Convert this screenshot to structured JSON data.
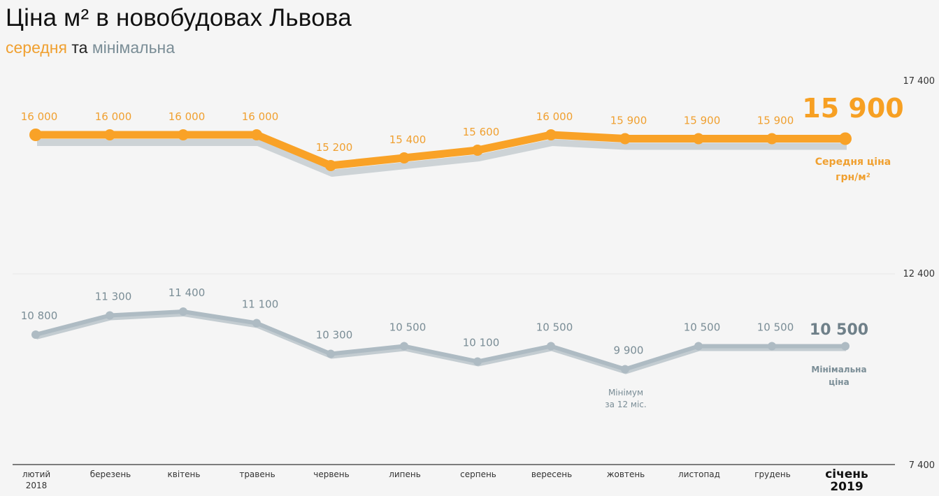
{
  "header": {
    "title": "Ціна м² в новобудовах Львова",
    "subtitle_avg": "середня",
    "subtitle_and": " та ",
    "subtitle_min": "мінімальна"
  },
  "colors": {
    "avg": "#f9a227",
    "avg_label": "#f0a030",
    "min": "#aebbc3",
    "min_label": "#7a8d96",
    "shadow": "#cdd3d6",
    "axis": "#555555",
    "background": "#f5f5f5"
  },
  "chart_data": {
    "type": "line",
    "title": "Ціна м² в новобудовах Львова",
    "subtitle": "середня та мінімальна",
    "categories": [
      "лютий 2018",
      "березень",
      "квітень",
      "травень",
      "червень",
      "липень",
      "серпень",
      "вересень",
      "жовтень",
      "листопад",
      "грудень",
      "січень 2019"
    ],
    "series": [
      {
        "name": "Середня ціна грн/м²",
        "values": [
          16000,
          16000,
          16000,
          16000,
          15200,
          15400,
          15600,
          16000,
          15900,
          15900,
          15900,
          15900
        ]
      },
      {
        "name": "Мінімальна ціна",
        "values": [
          10800,
          11300,
          11400,
          11100,
          10300,
          10500,
          10100,
          10500,
          9900,
          10500,
          10500,
          10500
        ]
      }
    ],
    "value_labels_avg": [
      "16 000",
      "16 000",
      "16 000",
      "16 000",
      "15 200",
      "15 400",
      "15 600",
      "16 000",
      "15 900",
      "15 900",
      "15 900",
      "15 900"
    ],
    "value_labels_min": [
      "10 800",
      "11 300",
      "11 400",
      "11 100",
      "10 300",
      "10 500",
      "10 100",
      "10 500",
      "9 900",
      "10 500",
      "10 500",
      "10 500"
    ],
    "y_ticks": [
      "17 400",
      "12 400",
      "7 400"
    ],
    "ylim": [
      7400,
      17400
    ],
    "xlabel": "",
    "ylabel": "",
    "grid": true,
    "annotations": {
      "avg_final": "15 900",
      "avg_caption_1": "Середня ціна",
      "avg_caption_2": "грн/м²",
      "min_final": "10 500",
      "min_caption_1": "Мінімальна",
      "min_caption_2": "ціна",
      "min_note_1": "Мінімум",
      "min_note_2": "за 12 міс."
    }
  },
  "x_axis": {
    "months": [
      "лютий",
      "березень",
      "квітень",
      "травень",
      "червень",
      "липень",
      "серпень",
      "вересень",
      "жовтень",
      "листопад",
      "грудень",
      "січень"
    ],
    "year_start": "2018",
    "year_end": "2019"
  }
}
